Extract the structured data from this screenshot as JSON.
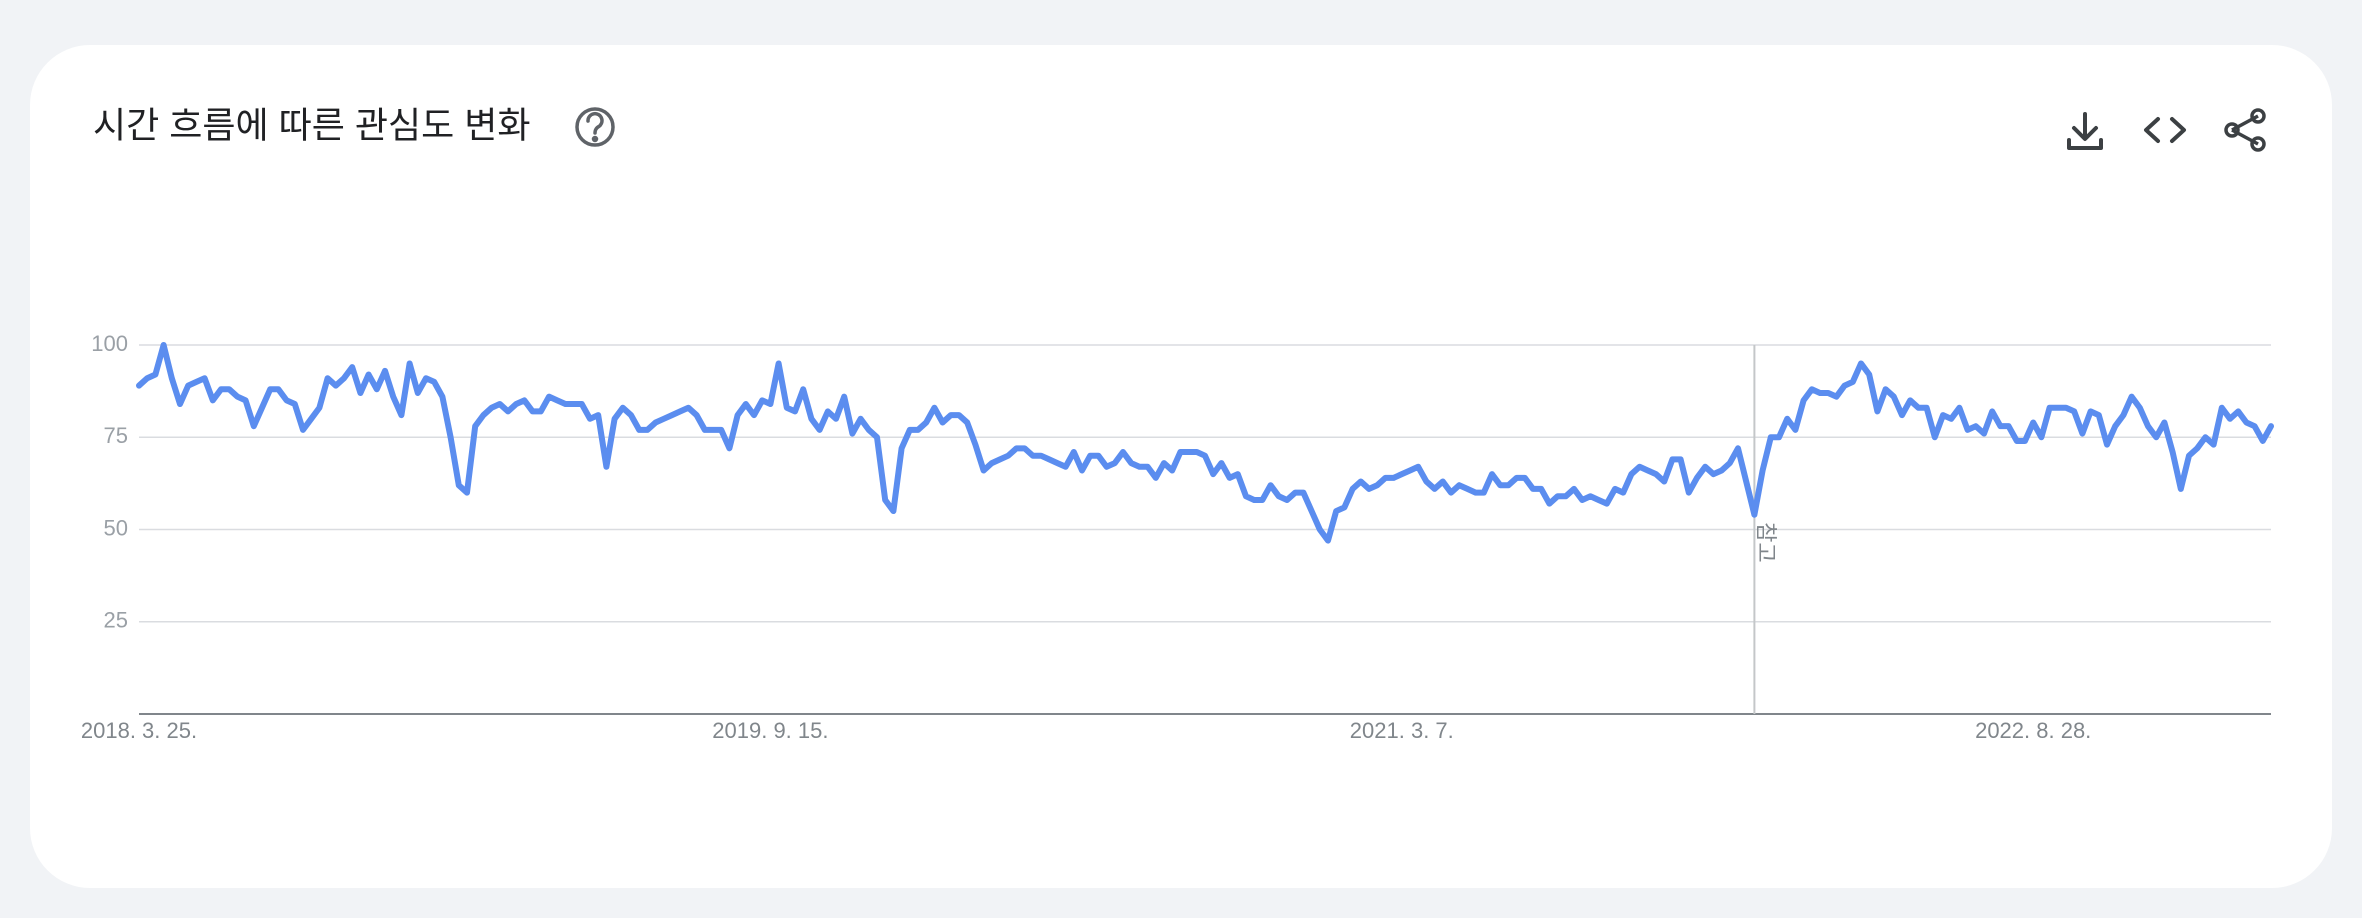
{
  "chart_data": {
    "type": "line",
    "title": "시간 흐름에 따른 관심도 변화",
    "categories": [
      "2018. 3. 25.",
      null,
      null,
      null,
      null,
      null,
      null,
      null,
      null,
      null,
      null,
      null,
      null,
      null,
      null,
      null,
      null,
      null,
      null,
      null,
      null,
      null,
      null,
      null,
      null,
      null,
      null,
      null,
      null,
      null,
      null,
      null,
      null,
      null,
      null,
      null,
      null,
      null,
      null,
      null,
      null,
      null,
      null,
      null,
      null,
      null,
      null,
      null,
      null,
      null,
      null,
      null,
      null,
      null,
      null,
      null,
      null,
      null,
      null,
      null,
      null,
      null,
      null,
      null,
      null,
      null,
      null,
      null,
      null,
      null,
      null,
      null,
      null,
      null,
      null,
      null,
      null,
      "2019. 9. 15.",
      null,
      null,
      null,
      null,
      null,
      null,
      null,
      null,
      null,
      null,
      null,
      null,
      null,
      null,
      null,
      null,
      null,
      null,
      null,
      null,
      null,
      null,
      null,
      null,
      null,
      null,
      null,
      null,
      null,
      null,
      null,
      null,
      null,
      null,
      null,
      null,
      null,
      null,
      null,
      null,
      null,
      null,
      null,
      null,
      null,
      null,
      null,
      null,
      null,
      null,
      null,
      null,
      null,
      null,
      null,
      null,
      null,
      null,
      null,
      null,
      null,
      null,
      null,
      null,
      null,
      null,
      null,
      null,
      null,
      null,
      null,
      null,
      null,
      null,
      null,
      null,
      "2021. 3. 7.",
      null,
      null,
      null,
      null,
      null,
      null,
      null,
      null,
      null,
      null,
      null,
      null,
      null,
      null,
      null,
      null,
      null,
      null,
      null,
      null,
      null,
      null,
      null,
      null,
      null,
      null,
      null,
      null,
      null,
      null,
      null,
      null,
      null,
      null,
      null,
      null,
      null,
      null,
      null,
      null,
      null,
      null,
      null,
      null,
      null,
      null,
      null,
      null,
      null,
      null,
      null,
      null,
      null,
      null,
      null,
      null,
      null,
      null,
      null,
      null,
      null,
      null,
      null,
      null,
      null,
      null,
      null,
      null,
      null,
      null,
      null,
      null,
      null,
      null,
      null,
      null,
      "2022. 8. 28.",
      null,
      null,
      null,
      null,
      null,
      null,
      null,
      null,
      null,
      null,
      null,
      null,
      null,
      null,
      null,
      null,
      null,
      null,
      null,
      null,
      null,
      null,
      null,
      null,
      null,
      null,
      null,
      null,
      null
    ],
    "values": [
      89,
      91,
      92,
      100,
      91,
      84,
      89,
      90,
      91,
      85,
      88,
      88,
      86,
      85,
      78,
      83,
      88,
      88,
      85,
      84,
      77,
      80,
      83,
      91,
      89,
      91,
      94,
      87,
      92,
      88,
      93,
      86,
      81,
      95,
      87,
      91,
      90,
      86,
      75,
      62,
      60,
      78,
      81,
      83,
      84,
      82,
      84,
      85,
      82,
      82,
      86,
      85,
      84,
      84,
      84,
      80,
      81,
      67,
      80,
      83,
      81,
      77,
      77,
      79,
      80,
      81,
      82,
      83,
      81,
      77,
      77,
      77,
      72,
      81,
      84,
      81,
      85,
      84,
      95,
      83,
      82,
      88,
      80,
      77,
      82,
      80,
      86,
      76,
      80,
      77,
      75,
      58,
      55,
      72,
      77,
      77,
      79,
      83,
      79,
      81,
      81,
      79,
      73,
      66,
      68,
      69,
      70,
      72,
      72,
      70,
      70,
      69,
      68,
      67,
      71,
      66,
      70,
      70,
      67,
      68,
      71,
      68,
      67,
      67,
      64,
      68,
      66,
      71,
      71,
      71,
      70,
      65,
      68,
      64,
      65,
      59,
      58,
      58,
      62,
      59,
      58,
      60,
      60,
      55,
      50,
      47,
      55,
      56,
      61,
      63,
      61,
      62,
      64,
      64,
      65,
      66,
      67,
      63,
      61,
      63,
      60,
      62,
      61,
      60,
      60,
      65,
      62,
      62,
      64,
      64,
      61,
      61,
      57,
      59,
      59,
      61,
      58,
      59,
      58,
      57,
      61,
      60,
      65,
      67,
      66,
      65,
      63,
      69,
      69,
      60,
      64,
      67,
      65,
      66,
      68,
      72,
      63,
      54,
      66,
      75,
      75,
      80,
      77,
      85,
      88,
      87,
      87,
      86,
      89,
      90,
      95,
      92,
      82,
      88,
      86,
      81,
      85,
      83,
      83,
      75,
      81,
      80,
      83,
      77,
      78,
      76,
      82,
      78,
      78,
      74,
      74,
      79,
      75,
      83,
      83,
      83,
      82,
      76,
      82,
      81,
      73,
      78,
      81,
      86,
      83,
      78,
      75,
      79,
      71,
      61,
      70,
      72,
      75,
      73,
      83,
      80,
      82,
      79,
      78,
      74,
      78
    ],
    "color": "#5b8def",
    "ylim": [
      0,
      100
    ],
    "yticks": [
      25,
      50,
      75,
      100
    ],
    "grid": true,
    "annotation": {
      "text": "참고",
      "index": 197
    }
  }
}
